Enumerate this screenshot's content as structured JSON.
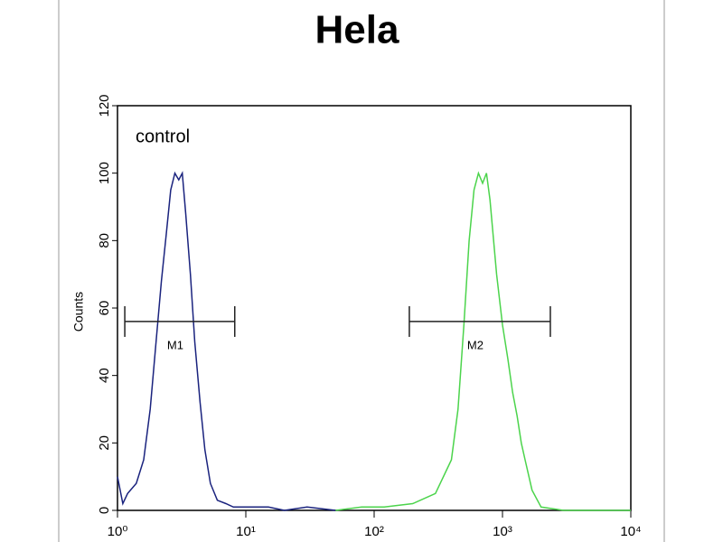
{
  "chart_data": {
    "type": "line",
    "title": "Hela",
    "y_label": "Counts",
    "xscale": "log",
    "xlim": [
      1,
      10000
    ],
    "ylim": [
      0,
      120
    ],
    "xticks": [
      {
        "value": 1,
        "label": "10⁰"
      },
      {
        "value": 10,
        "label": "10¹"
      },
      {
        "value": 100,
        "label": "10²"
      },
      {
        "value": 1000,
        "label": "10³"
      },
      {
        "value": 10000,
        "label": "10⁴"
      }
    ],
    "yticks": [
      0,
      20,
      40,
      60,
      80,
      100,
      120
    ],
    "series": [
      {
        "name": "control",
        "color": "#1a237e",
        "x": [
          1.0,
          1.1,
          1.2,
          1.4,
          1.6,
          1.8,
          2.0,
          2.2,
          2.4,
          2.6,
          2.8,
          3.0,
          3.2,
          3.4,
          3.7,
          4.0,
          4.4,
          4.8,
          5.3,
          6,
          7,
          8,
          10,
          15,
          20,
          30,
          50
        ],
        "values": [
          10,
          2,
          5,
          8,
          15,
          30,
          50,
          68,
          82,
          95,
          100,
          98,
          100,
          88,
          70,
          50,
          32,
          18,
          8,
          3,
          2,
          1,
          1,
          1,
          0,
          1,
          0
        ]
      },
      {
        "color": "#4cd44c",
        "x": [
          50,
          80,
          120,
          200,
          300,
          400,
          450,
          500,
          550,
          600,
          650,
          700,
          750,
          800,
          900,
          1000,
          1100,
          1200,
          1300,
          1400,
          1500,
          1700,
          2000,
          3000,
          5000,
          10000
        ],
        "values": [
          0,
          1,
          1,
          2,
          5,
          15,
          30,
          55,
          80,
          95,
          100,
          97,
          100,
          92,
          70,
          55,
          45,
          35,
          28,
          20,
          15,
          6,
          1,
          0,
          0,
          0
        ]
      }
    ],
    "markers": [
      {
        "label": "M1",
        "x": [
          1.14,
          8.2
        ],
        "y": 56
      },
      {
        "label": "M2",
        "x": [
          188,
          2360
        ],
        "y": 56
      }
    ]
  }
}
